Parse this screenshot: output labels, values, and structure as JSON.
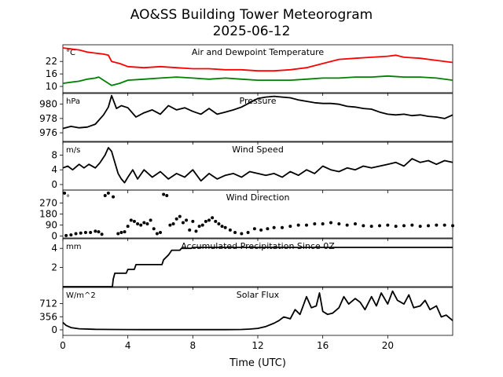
{
  "title": "AO&SS Building Tower Meteorogram",
  "date": "2025-06-12",
  "xlabel": "Time (UTC)",
  "colors": {
    "temperature": "#ff0000",
    "dewpoint": "#008000",
    "default": "#000000"
  },
  "chart_data": [
    {
      "type": "line",
      "title": "Air and Dewpoint Temperature",
      "unit": "°C",
      "xlim": [
        0,
        24
      ],
      "ylim": [
        7,
        30
      ],
      "xticks": [
        0,
        4,
        8,
        12,
        16,
        20
      ],
      "yticks": [
        10,
        16,
        22
      ],
      "series": [
        {
          "color": "#ff0000",
          "x": [
            0,
            0.5,
            1,
            1.5,
            2,
            2.5,
            2.8,
            3,
            3.5,
            4,
            5,
            6,
            7,
            8,
            9,
            10,
            11,
            12,
            13,
            14,
            15,
            16,
            17,
            18,
            19,
            20,
            20.5,
            21,
            22,
            23,
            24
          ],
          "y": [
            28.5,
            28,
            27.5,
            26.5,
            26,
            25.5,
            25,
            22,
            21,
            19.5,
            19,
            19.5,
            19,
            18.5,
            18.5,
            18,
            18,
            17.5,
            17.5,
            18,
            19,
            21,
            23,
            23.5,
            24,
            24.5,
            25,
            24,
            23.5,
            22.5,
            21.5
          ]
        },
        {
          "color": "#008000",
          "x": [
            0,
            0.5,
            1,
            1.5,
            2,
            2.2,
            2.5,
            3,
            3.5,
            4,
            5,
            6,
            7,
            8,
            9,
            10,
            11,
            12,
            13,
            14,
            15,
            16,
            17,
            18,
            19,
            20,
            21,
            22,
            23,
            24
          ],
          "y": [
            11.5,
            12,
            12.5,
            13.5,
            14,
            14.5,
            13,
            10.5,
            11.5,
            13,
            13.5,
            14,
            14.5,
            14,
            13.5,
            14,
            13.5,
            13,
            13,
            13,
            13.5,
            14,
            14,
            14.5,
            14.5,
            15,
            14.5,
            14.5,
            14,
            13
          ]
        }
      ]
    },
    {
      "type": "line",
      "title": "Pressure",
      "unit": "hPa",
      "xlim": [
        0,
        24
      ],
      "ylim": [
        974.8,
        981.5
      ],
      "xticks": [
        0,
        4,
        8,
        12,
        16,
        20
      ],
      "yticks": [
        976,
        978,
        980
      ],
      "series": [
        {
          "color": "#000000",
          "x": [
            0,
            0.5,
            1,
            1.5,
            2,
            2.5,
            2.8,
            3,
            3.3,
            3.6,
            4,
            4.5,
            5,
            5.5,
            6,
            6.5,
            7,
            7.5,
            8,
            8.5,
            9,
            9.5,
            10,
            10.5,
            11,
            11.5,
            12,
            12.5,
            13,
            13.5,
            14,
            14.5,
            15,
            15.5,
            16,
            16.5,
            17,
            17.5,
            18,
            18.5,
            19,
            19.5,
            20,
            20.5,
            21,
            21.5,
            22,
            22.5,
            23,
            23.5,
            24
          ],
          "y": [
            976.6,
            976.9,
            976.7,
            976.8,
            977.2,
            978.5,
            979.6,
            981.2,
            979.4,
            979.8,
            979.5,
            978.2,
            978.8,
            979.2,
            978.6,
            979.8,
            979.2,
            979.5,
            979.0,
            978.6,
            979.4,
            978.6,
            978.9,
            979.2,
            979.6,
            980.2,
            980.8,
            981.0,
            981.1,
            981.0,
            980.9,
            980.6,
            980.4,
            980.2,
            980.1,
            980.1,
            980.0,
            979.7,
            979.6,
            979.4,
            979.3,
            978.9,
            978.6,
            978.5,
            978.6,
            978.4,
            978.5,
            978.3,
            978.2,
            978.0,
            978.5
          ]
        }
      ]
    },
    {
      "type": "line",
      "title": "Wind Speed",
      "unit": "m/s",
      "xlim": [
        0,
        24
      ],
      "ylim": [
        -1.5,
        11.5
      ],
      "xticks": [
        0,
        4,
        8,
        12,
        16,
        20
      ],
      "yticks": [
        0,
        4,
        8
      ],
      "series": [
        {
          "color": "#000000",
          "x": [
            0,
            0.3,
            0.6,
            1,
            1.3,
            1.6,
            2,
            2.3,
            2.6,
            2.8,
            3,
            3.2,
            3.4,
            3.6,
            3.8,
            4,
            4.3,
            4.6,
            5,
            5.5,
            6,
            6.5,
            7,
            7.5,
            8,
            8.5,
            9,
            9.5,
            10,
            10.5,
            11,
            11.5,
            12,
            12.5,
            13,
            13.5,
            14,
            14.5,
            15,
            15.5,
            16,
            16.5,
            17,
            17.5,
            18,
            18.5,
            19,
            19.5,
            20,
            20.5,
            21,
            21.5,
            22,
            22.5,
            23,
            23.5,
            24
          ],
          "y": [
            4.5,
            5,
            4,
            5.5,
            4.5,
            5.5,
            4.5,
            6,
            8,
            10,
            9,
            6,
            3,
            1.5,
            0.5,
            2,
            4,
            1.5,
            4,
            2,
            3.5,
            1.5,
            3,
            2,
            4,
            1,
            3,
            1.5,
            2.5,
            3,
            2,
            3.5,
            3,
            2.5,
            3,
            2,
            3.5,
            2.5,
            4,
            3,
            5,
            4,
            3.5,
            4.5,
            4,
            5,
            4.5,
            5,
            5.5,
            6,
            5,
            7,
            6,
            6.5,
            5.5,
            6.5,
            6
          ]
        }
      ]
    },
    {
      "type": "scatter",
      "title": "Wind Direction",
      "unit": "°",
      "xlim": [
        0,
        24
      ],
      "ylim": [
        -15,
        375
      ],
      "xticks": [
        0,
        4,
        8,
        12,
        16,
        20
      ],
      "yticks": [
        0,
        90,
        180,
        270
      ],
      "series": [
        {
          "color": "#000000",
          "x": [
            0.1,
            0.2,
            0.5,
            0.8,
            1.1,
            1.4,
            1.7,
            2,
            2.2,
            2.4,
            2.6,
            2.8,
            3.1,
            3.4,
            3.6,
            3.8,
            4,
            4.2,
            4.4,
            4.6,
            4.8,
            5,
            5.2,
            5.4,
            5.6,
            5.8,
            6,
            6.2,
            6.4,
            6.6,
            6.8,
            7,
            7.2,
            7.4,
            7.6,
            7.8,
            8,
            8.2,
            8.4,
            8.6,
            8.8,
            9,
            9.2,
            9.4,
            9.6,
            9.8,
            10,
            10.3,
            10.6,
            11,
            11.4,
            11.8,
            12.2,
            12.6,
            13,
            13.5,
            14,
            14.5,
            15,
            15.5,
            16,
            16.5,
            17,
            17.5,
            18,
            18.5,
            19,
            19.5,
            20,
            20.5,
            21,
            21.5,
            22,
            22.5,
            23,
            23.5,
            24
          ],
          "y": [
            350,
            5,
            10,
            20,
            25,
            30,
            30,
            40,
            35,
            15,
            330,
            350,
            320,
            20,
            30,
            35,
            80,
            130,
            120,
            100,
            90,
            110,
            100,
            130,
            60,
            20,
            30,
            340,
            330,
            90,
            100,
            140,
            160,
            110,
            130,
            50,
            120,
            40,
            80,
            90,
            120,
            130,
            150,
            120,
            100,
            80,
            70,
            50,
            30,
            20,
            30,
            60,
            50,
            60,
            70,
            70,
            80,
            90,
            90,
            100,
            100,
            110,
            100,
            90,
            100,
            85,
            80,
            85,
            90,
            80,
            85,
            90,
            80,
            85,
            90,
            90,
            85
          ]
        }
      ]
    },
    {
      "type": "line",
      "title": "Accumulated Precipitation Since 0Z",
      "unit": "mm",
      "xlim": [
        0,
        24
      ],
      "ylim": [
        0,
        5
      ],
      "xticks": [
        0,
        4,
        8,
        12,
        16,
        20
      ],
      "yticks": [
        2,
        4
      ],
      "series": [
        {
          "color": "#000000",
          "x": [
            0,
            3.05,
            3.1,
            3.2,
            3.9,
            4.0,
            4.4,
            4.5,
            6.1,
            6.2,
            6.5,
            6.7,
            7.2,
            7.3,
            7.9,
            8.0,
            24
          ],
          "y": [
            0,
            0,
            0.8,
            1.4,
            1.4,
            1.8,
            1.8,
            2.3,
            2.3,
            2.8,
            3.3,
            3.8,
            3.8,
            4.0,
            4.0,
            4.1,
            4.1
          ]
        }
      ]
    },
    {
      "type": "line",
      "title": "Solar Flux",
      "unit": "W/m^2",
      "xlim": [
        0,
        24
      ],
      "ylim": [
        -150,
        1150
      ],
      "xticks": [
        0,
        4,
        8,
        12,
        16,
        20
      ],
      "yticks": [
        0,
        356,
        712
      ],
      "series": [
        {
          "color": "#000000",
          "x": [
            0,
            0.2,
            0.5,
            1,
            2,
            3,
            4,
            5,
            6,
            7,
            8,
            9,
            10,
            11,
            11.5,
            12,
            12.5,
            13,
            13.3,
            13.6,
            14,
            14.3,
            14.6,
            15,
            15.3,
            15.6,
            15.8,
            16,
            16.3,
            16.6,
            17,
            17.3,
            17.6,
            18,
            18.3,
            18.6,
            19,
            19.3,
            19.6,
            20,
            20.3,
            20.6,
            21,
            21.3,
            21.6,
            22,
            22.3,
            22.6,
            23,
            23.3,
            23.6,
            24
          ],
          "y": [
            200,
            120,
            60,
            30,
            15,
            10,
            8,
            5,
            5,
            5,
            5,
            5,
            5,
            10,
            20,
            40,
            90,
            180,
            250,
            350,
            300,
            550,
            420,
            900,
            600,
            650,
            1000,
            500,
            420,
            450,
            600,
            900,
            700,
            850,
            750,
            550,
            900,
            650,
            1000,
            700,
            1050,
            800,
            700,
            950,
            600,
            650,
            800,
            550,
            650,
            350,
            400,
            250
          ]
        }
      ]
    }
  ]
}
